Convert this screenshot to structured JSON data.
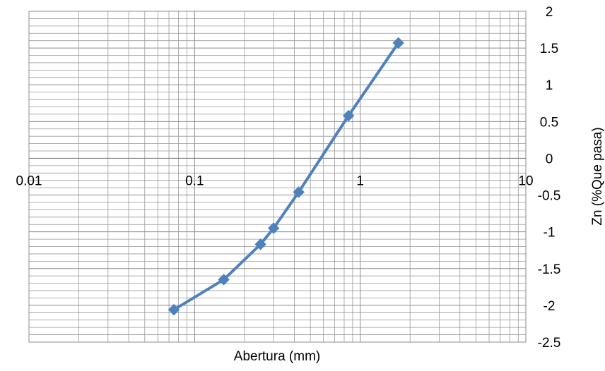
{
  "chart_data": {
    "type": "line",
    "title": "",
    "xlabel": "Abertura (mm)",
    "ylabel": "Zn (%Que pasa)",
    "x_scale": "log",
    "xlim": [
      0.01,
      10
    ],
    "ylim": [
      -2.5,
      2
    ],
    "x_ticks": [
      "0.01",
      "0.1",
      "1",
      "10"
    ],
    "y_ticks": [
      "2",
      "1.5",
      "1",
      "0.5",
      "0",
      "-0.5",
      "-1",
      "-1.5",
      "-2",
      "-2.5"
    ],
    "y_axis_position": "right",
    "x_axis_crosses_at_y": 0,
    "grid": true,
    "minor_grid": true,
    "legend": "none",
    "marker": "diamond",
    "line_color": "#4F81BD",
    "grid_color": "#999999",
    "series": [
      {
        "x": [
          0.075,
          0.15,
          0.25,
          0.3,
          0.425,
          0.85,
          1.7
        ],
        "y": [
          -2.06,
          -1.65,
          -1.17,
          -0.95,
          -0.46,
          0.58,
          1.57
        ]
      }
    ]
  }
}
